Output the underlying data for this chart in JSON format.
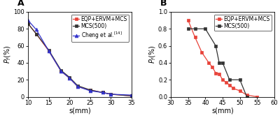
{
  "plot_A": {
    "title": "A",
    "xlabel": "s(mm)",
    "ylabel": "$P_f$(%%)",
    "xlim": [
      10,
      35
    ],
    "ylim": [
      0,
      100
    ],
    "xticks": [
      10,
      15,
      20,
      25,
      30,
      35
    ],
    "yticks": [
      0,
      20,
      40,
      60,
      80,
      100
    ],
    "series": [
      {
        "label": "EQP+ERVM+MCS",
        "color": "#e8433a",
        "marker": "s",
        "markersize": 3,
        "linewidth": 0.9,
        "x": [
          10,
          12,
          15,
          18,
          20,
          22,
          25,
          28,
          30,
          35
        ],
        "y": [
          86,
          74,
          54,
          30,
          22,
          12,
          8,
          5,
          3,
          1
        ]
      },
      {
        "label": "MCS(500)",
        "color": "#333333",
        "marker": "s",
        "markersize": 3,
        "linewidth": 0.9,
        "x": [
          10,
          12,
          15,
          18,
          20,
          22,
          25,
          28,
          30,
          35
        ],
        "y": [
          86,
          74,
          55,
          31,
          23,
          13,
          8,
          5,
          3,
          1
        ]
      },
      {
        "label": "Cheng et al.$^{[14]}$",
        "color": "#3333cc",
        "marker": "^",
        "markersize": 3.5,
        "linewidth": 0.9,
        "x": [
          10,
          12,
          15,
          18,
          20,
          22,
          25,
          28,
          30,
          35
        ],
        "y": [
          90,
          79,
          54,
          30,
          22,
          12,
          7,
          5,
          3,
          2
        ]
      }
    ]
  },
  "plot_B": {
    "title": "B",
    "xlabel": "s(mm)",
    "ylabel": "$P_f$(%%)",
    "xlim": [
      30,
      60
    ],
    "ylim": [
      0,
      1.0
    ],
    "xticks": [
      30,
      35,
      40,
      45,
      50,
      55,
      60
    ],
    "yticks": [
      0.0,
      0.2,
      0.4,
      0.6,
      0.8,
      1.0
    ],
    "series": [
      {
        "label": "EQP+ERVM+MCS",
        "color": "#e8433a",
        "marker": "s",
        "markersize": 3,
        "linewidth": 0.9,
        "x": [
          35,
          37,
          39,
          41,
          42,
          43,
          44,
          45,
          46,
          47,
          48,
          50,
          52,
          55
        ],
        "y": [
          0.9,
          0.7,
          0.52,
          0.4,
          0.35,
          0.28,
          0.27,
          0.2,
          0.17,
          0.14,
          0.1,
          0.07,
          0.02,
          0.0
        ]
      },
      {
        "label": "MCS(500)",
        "color": "#333333",
        "marker": "s",
        "markersize": 3,
        "linewidth": 0.9,
        "x": [
          35,
          37,
          40,
          43,
          44,
          45,
          47,
          50,
          52
        ],
        "y": [
          0.8,
          0.8,
          0.8,
          0.6,
          0.4,
          0.4,
          0.2,
          0.2,
          0.0
        ]
      }
    ]
  },
  "background_color": "#ffffff",
  "legend_fontsize": 5.5,
  "tick_fontsize": 6.0,
  "label_fontsize": 7.0,
  "title_fontsize": 9.0
}
